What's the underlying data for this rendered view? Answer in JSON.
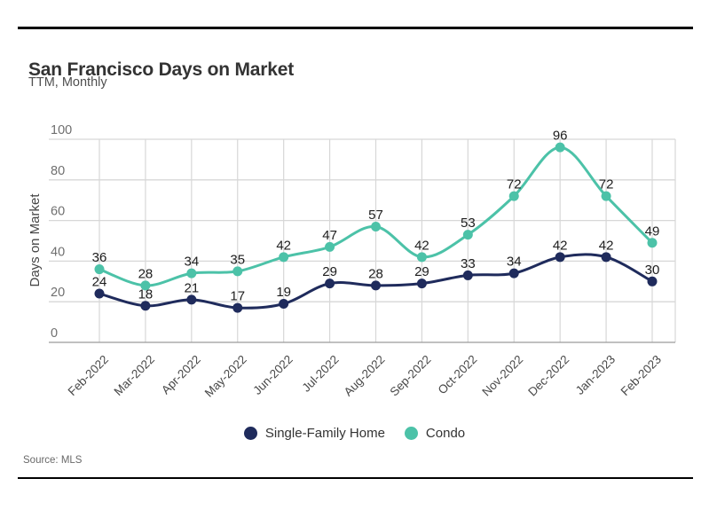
{
  "header": {
    "title": "San Francisco Days on Market",
    "subtitle": "TTM, Monthly"
  },
  "footer": {
    "source": "Source: MLS"
  },
  "chart_data": {
    "type": "line",
    "title": "San Francisco Days on Market",
    "subtitle": "TTM, Monthly",
    "categories": [
      "Feb-2022",
      "Mar-2022",
      "Apr-2022",
      "May-2022",
      "Jun-2022",
      "Jul-2022",
      "Aug-2022",
      "Sep-2022",
      "Oct-2022",
      "Nov-2022",
      "Dec-2022",
      "Jan-2023",
      "Feb-2023"
    ],
    "series": [
      {
        "name": "Single-Family Home",
        "color": "#1F2B5C",
        "values": [
          24,
          18,
          21,
          17,
          19,
          29,
          28,
          29,
          33,
          34,
          42,
          42,
          30
        ]
      },
      {
        "name": "Condo",
        "color": "#4CC2A8",
        "values": [
          36,
          28,
          34,
          35,
          42,
          47,
          57,
          42,
          53,
          72,
          96,
          72,
          49
        ]
      }
    ],
    "ylabel": "Days on Market",
    "xlabel": "",
    "ylim": [
      0,
      100
    ],
    "yticks": [
      0,
      20,
      40,
      60,
      80,
      100
    ],
    "grid": true,
    "smooth_lines": true,
    "data_labels": true,
    "legend_position": "bottom",
    "label_color": "#1c1c1c",
    "grid_color": "#d7d7d7",
    "zero_axis_color": "#9b9b9b",
    "tick_label_color": "#6f6f6f",
    "x_label_color": "#484848"
  }
}
